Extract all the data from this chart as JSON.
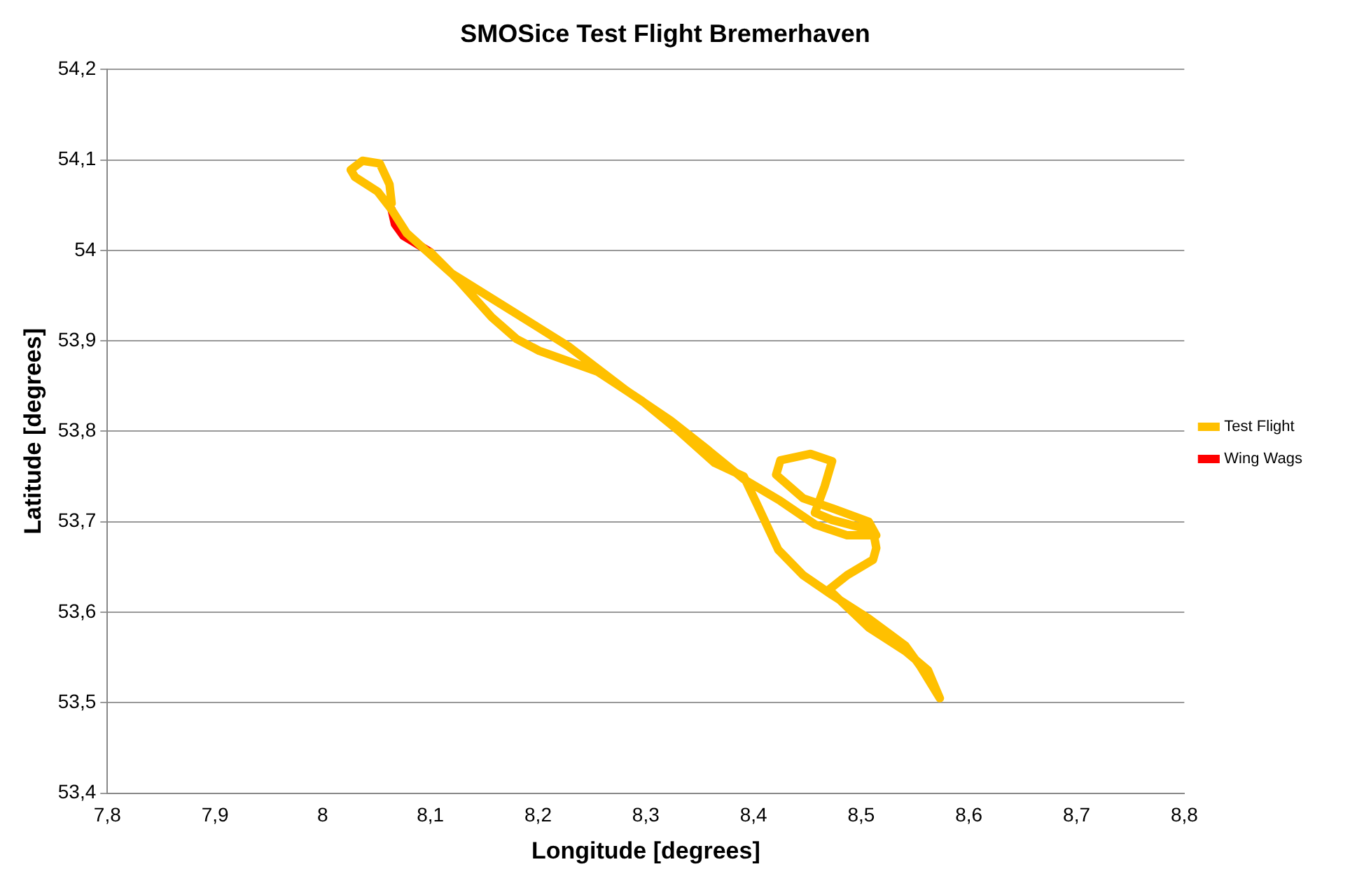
{
  "chart_data": {
    "type": "line",
    "title": "SMOSice Test Flight Bremerhaven",
    "xlabel": "Longitude [degrees]",
    "ylabel": "Latitude [degrees]",
    "xlim": [
      7.8,
      8.8
    ],
    "xticks": [
      {
        "value": 7.8,
        "label": "7,8"
      },
      {
        "value": 7.9,
        "label": "7,9"
      },
      8,
      {
        "value": 8.1,
        "label": "8,1"
      },
      {
        "value": 8.2,
        "label": "8,2"
      },
      {
        "value": 8.3,
        "label": "8,3"
      },
      {
        "value": 8.4,
        "label": "8,4"
      },
      {
        "value": 8.5,
        "label": "8,5"
      },
      {
        "value": 8.6,
        "label": "8,6"
      },
      {
        "value": 8.7,
        "label": "8,7"
      },
      {
        "value": 8.8,
        "label": "8,8"
      }
    ],
    "ylim": [
      53.4,
      54.2
    ],
    "yticks": [
      {
        "value": 53.4,
        "label": "53,4"
      },
      {
        "value": 53.5,
        "label": "53,5"
      },
      {
        "value": 53.6,
        "label": "53,6"
      },
      {
        "value": 53.7,
        "label": "53,7"
      },
      {
        "value": 53.8,
        "label": "53,8"
      },
      {
        "value": 53.9,
        "label": "53,9"
      },
      54,
      {
        "value": 54.1,
        "label": "54,1"
      },
      {
        "value": 54.2,
        "label": "54,2"
      }
    ],
    "grid": "y",
    "legend": "right",
    "marker": "none",
    "series": [
      {
        "name": "Test Flight",
        "color": "#ffc000",
        "x": [
          8.1,
          8.126,
          8.157,
          8.18,
          8.201,
          8.255,
          8.296,
          8.33,
          8.364,
          8.391,
          8.405,
          8.423,
          8.446,
          8.473,
          8.507,
          8.541,
          8.555,
          8.573,
          8.562,
          8.541,
          8.507,
          8.47,
          8.487,
          8.511,
          8.514,
          8.511,
          8.473,
          8.457,
          8.466,
          8.473,
          8.453,
          8.425,
          8.421,
          8.446,
          8.473,
          8.507,
          8.514,
          8.487,
          8.457,
          8.425,
          8.391,
          8.357,
          8.323,
          8.282,
          8.228,
          8.173,
          8.119,
          8.078,
          8.064,
          8.051,
          8.03,
          8.026,
          8.037,
          8.053,
          8.062,
          8.064
        ],
        "values": [
          53.998,
          53.967,
          53.926,
          53.902,
          53.889,
          53.866,
          53.834,
          53.801,
          53.765,
          53.75,
          53.715,
          53.669,
          53.641,
          53.619,
          53.593,
          53.563,
          53.54,
          53.505,
          53.536,
          53.557,
          53.583,
          53.625,
          53.641,
          53.658,
          53.671,
          53.69,
          53.702,
          53.71,
          53.739,
          53.767,
          53.775,
          53.768,
          53.752,
          53.726,
          53.715,
          53.7,
          53.685,
          53.685,
          53.697,
          53.723,
          53.747,
          53.78,
          53.812,
          53.845,
          53.894,
          53.935,
          53.975,
          54.019,
          54.045,
          54.065,
          54.081,
          54.089,
          54.099,
          54.096,
          54.073,
          54.052
        ]
      },
      {
        "name": "Wing Wags",
        "color": "#ff0000",
        "x": [
          8.064,
          8.067,
          8.075,
          8.089,
          8.1
        ],
        "values": [
          54.045,
          54.029,
          54.016,
          54.006,
          53.998
        ]
      }
    ]
  }
}
